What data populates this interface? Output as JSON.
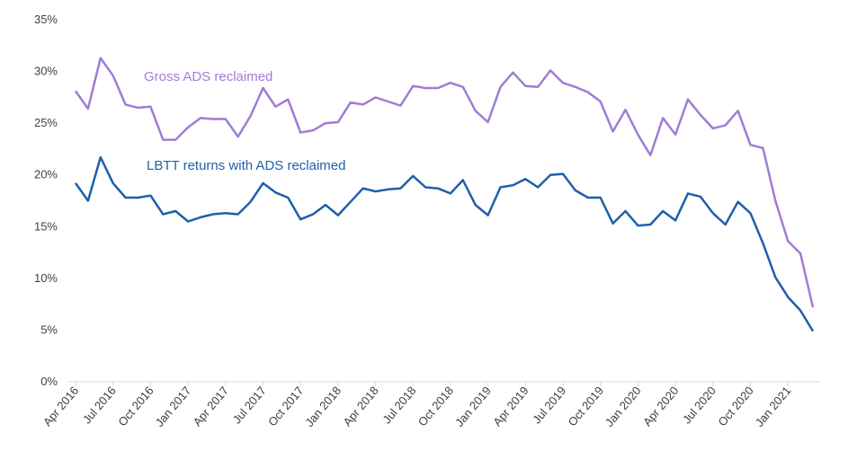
{
  "chart_data": {
    "type": "line",
    "title": "",
    "xlabel": "",
    "ylabel": "",
    "ylim": [
      0,
      35
    ],
    "y_ticks": [
      "0%",
      "5%",
      "10%",
      "15%",
      "20%",
      "25%",
      "30%",
      "35%"
    ],
    "y_tick_values": [
      0,
      5,
      10,
      15,
      20,
      25,
      30,
      35
    ],
    "x_tick_labels": [
      "Apr 2016",
      "Jul 2016",
      "Oct 2016",
      "Jan 2017",
      "Apr 2017",
      "Jul 2017",
      "Oct 2017",
      "Jan 2018",
      "Apr 2018",
      "Jul 2018",
      "Oct 2018",
      "Jan 2019",
      "Apr 2019",
      "Jul 2019",
      "Oct 2019",
      "Jan 2020",
      "Apr 2020",
      "Jul 2020",
      "Oct 2020",
      "Jan 2021"
    ],
    "x_tick_label_month_index": [
      0,
      3,
      6,
      9,
      12,
      15,
      18,
      21,
      24,
      27,
      30,
      33,
      36,
      39,
      42,
      45,
      48,
      51,
      54,
      57
    ],
    "month_count": 60,
    "grid": false,
    "legend": "inline labels",
    "series": [
      {
        "name": "Gross ADS reclaimed",
        "color": "#a07cd6",
        "values": [
          28.1,
          26.4,
          31.3,
          29.6,
          26.8,
          26.5,
          26.6,
          23.4,
          23.4,
          24.6,
          25.5,
          25.4,
          25.4,
          23.7,
          25.7,
          28.4,
          26.6,
          27.3,
          24.1,
          24.3,
          25.0,
          25.1,
          27.0,
          26.8,
          27.5,
          27.1,
          26.7,
          28.6,
          28.4,
          28.4,
          28.9,
          28.5,
          26.2,
          25.1,
          28.5,
          29.9,
          28.6,
          28.5,
          30.1,
          28.9,
          28.5,
          28.0,
          27.1,
          24.2,
          26.3,
          23.9,
          21.9,
          25.5,
          23.9,
          27.3,
          25.8,
          24.5,
          24.8,
          26.2,
          22.9,
          22.6,
          17.5,
          13.6,
          12.4,
          7.2
        ]
      },
      {
        "name": "LBTT returns with ADS reclaimed",
        "color": "#1f5fad",
        "values": [
          19.2,
          17.5,
          21.7,
          19.2,
          17.8,
          17.8,
          18.0,
          16.2,
          16.5,
          15.5,
          15.9,
          16.2,
          16.3,
          16.2,
          17.4,
          19.2,
          18.3,
          17.8,
          15.7,
          16.2,
          17.1,
          16.1,
          17.4,
          18.7,
          18.4,
          18.6,
          18.7,
          19.9,
          18.8,
          18.7,
          18.2,
          19.5,
          17.1,
          16.1,
          18.8,
          19.0,
          19.6,
          18.8,
          20.0,
          20.1,
          18.5,
          17.8,
          17.8,
          15.3,
          16.5,
          15.1,
          15.2,
          16.5,
          15.6,
          18.2,
          17.9,
          16.3,
          15.2,
          17.4,
          16.3,
          13.4,
          10.1,
          8.2,
          6.9,
          4.9
        ]
      }
    ]
  }
}
